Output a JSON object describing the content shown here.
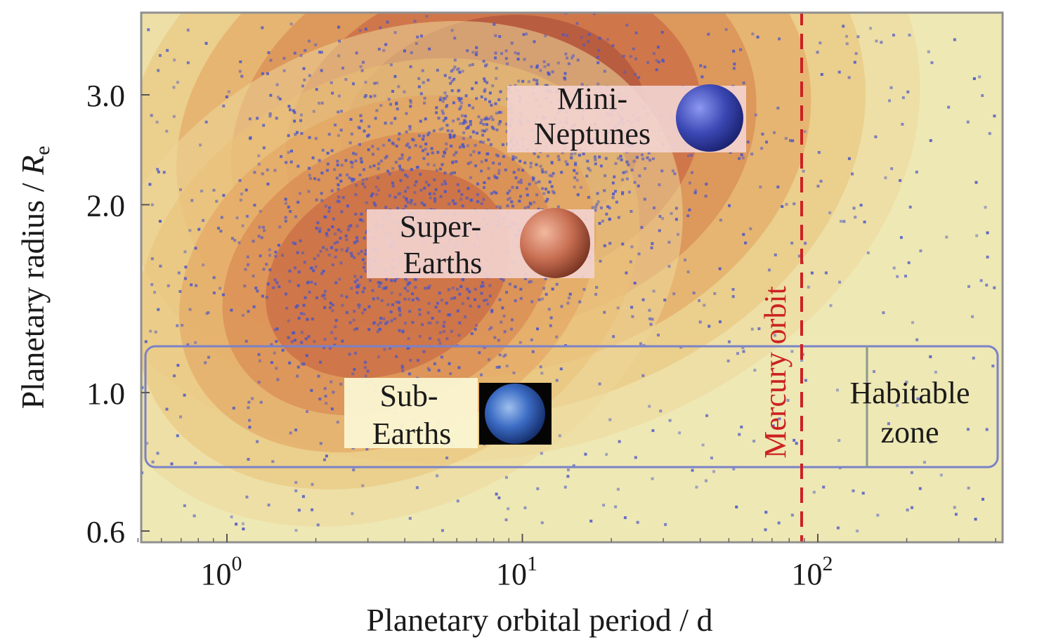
{
  "chart_data": {
    "type": "scatter",
    "xlabel": "Planetary orbital period / d",
    "ylabel_main": "Planetary radius / ",
    "ylabel_italic": "R",
    "ylabel_sub": "e",
    "x_scale": "log",
    "y_scale": "log",
    "xlim": [
      0.5,
      400
    ],
    "ylim": [
      0.58,
      4.0
    ],
    "x_ticks": [
      {
        "value": 1,
        "base": "10",
        "exp": "0"
      },
      {
        "value": 10,
        "base": "10",
        "exp": "1"
      },
      {
        "value": 100,
        "base": "10",
        "exp": "2"
      }
    ],
    "y_ticks": [
      {
        "value": 0.6,
        "label": "0.6"
      },
      {
        "value": 1.0,
        "label": "1.0"
      },
      {
        "value": 2.0,
        "label": "2.0"
      },
      {
        "value": 3.0,
        "label": "3.0"
      }
    ],
    "grid": false,
    "background": "#eee8b4",
    "density_colors": [
      "#ecd79a",
      "#e9c177",
      "#e2a15c",
      "#d67f4a",
      "#c25d3e",
      "#a8483a"
    ],
    "point_color": "#4a55c8",
    "mercury_orbit": {
      "x": 88,
      "label": "Mercury orbit",
      "color": "#cc2222"
    },
    "regions": {
      "mini_neptunes": {
        "label_line1": "Mini-",
        "label_line2": "Neptunes",
        "x_center": 15,
        "y_center": 2.5
      },
      "super_earths": {
        "label_line1": "Super-",
        "label_line2": "Earths",
        "x_center": 5,
        "y_center": 1.6
      },
      "sub_earths": {
        "label_line1": "Sub-",
        "label_line2": "Earths",
        "x_center": 4,
        "y_center": 0.9
      },
      "habitable_zone": {
        "label_line1": "Habitable",
        "label_line2": "zone",
        "x_range": [
          150,
          400
        ]
      },
      "earth_size_band": {
        "y_range": [
          0.78,
          1.22
        ],
        "x_range": [
          0.5,
          400
        ],
        "color": "#7a82c8"
      }
    },
    "density_clusters": [
      {
        "x": 8,
        "y": 2.6,
        "sx": 0.34,
        "sy": 0.12,
        "levels": [
          1.0,
          0.82,
          0.65,
          0.5,
          0.35,
          0.2
        ]
      },
      {
        "x": 3.5,
        "y": 1.55,
        "sx": 0.28,
        "sy": 0.1,
        "levels": [
          0.85,
          0.7,
          0.55,
          0.4,
          0.25
        ]
      }
    ]
  }
}
